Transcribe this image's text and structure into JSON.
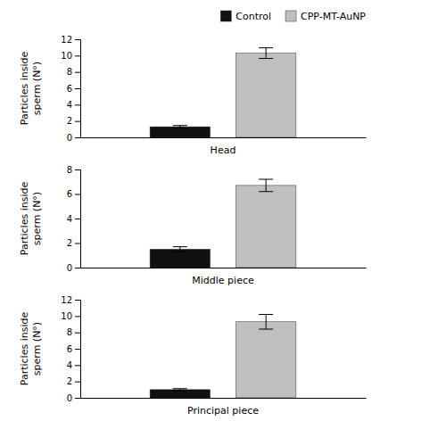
{
  "chart_data": [
    {
      "type": "bar",
      "x_label": "Head",
      "y_label": "Particles inside\nsperm (N°)",
      "categories": [
        null
      ],
      "series": [
        {
          "name": "Control",
          "color": "#111111",
          "values": [
            1.3
          ],
          "errors": [
            0.15
          ]
        },
        {
          "name": "CPP-MT-AuNP",
          "color": "#c0c0c0",
          "values": [
            10.3
          ],
          "errors": [
            0.65
          ]
        }
      ],
      "ylim": [
        0,
        12
      ],
      "yticks": [
        0,
        2,
        4,
        6,
        8,
        10,
        12
      ],
      "legend": "upper right"
    },
    {
      "type": "bar",
      "x_label": "Middle piece",
      "y_label": "Particles inside\nsperm (N°)",
      "categories": [
        null
      ],
      "series": [
        {
          "color": "#111111",
          "values": [
            1.5
          ],
          "errors": [
            0.2
          ]
        },
        {
          "color": "#c0c0c0",
          "values": [
            6.7
          ],
          "errors": [
            0.5
          ]
        }
      ],
      "ylim": [
        0,
        8
      ],
      "yticks": [
        0,
        2,
        4,
        6,
        8
      ]
    },
    {
      "type": "bar",
      "x_label": "Principal piece",
      "y_label": "Particles inside\nsperm (N°)",
      "categories": [
        null
      ],
      "series": [
        {
          "color": "#111111",
          "values": [
            1.0
          ],
          "errors": [
            0.12
          ]
        },
        {
          "color": "#c0c0c0",
          "values": [
            9.3
          ],
          "errors": [
            0.9
          ]
        }
      ],
      "ylim": [
        0,
        12
      ],
      "yticks": [
        0,
        2,
        4,
        6,
        8,
        10,
        12
      ]
    }
  ]
}
